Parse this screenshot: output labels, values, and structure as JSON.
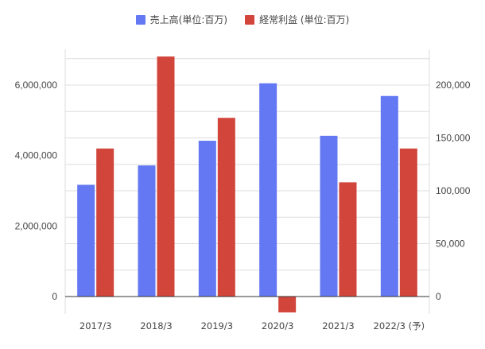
{
  "legend": {
    "sales_label": "売上高(単位:百万)",
    "profit_label": "経常利益 (単位:百万)"
  },
  "colors": {
    "sales": "#6378f2",
    "profit": "#d1453b",
    "grid": "#dddddd",
    "zero_line": "#333333"
  },
  "chart_data": {
    "type": "bar",
    "categories": [
      "2017/3",
      "2018/3",
      "2019/3",
      "2020/3",
      "2021/3",
      "2022/3 (予)"
    ],
    "series": [
      {
        "name": "売上高(単位:百万)",
        "axis": "left",
        "values": [
          3170000,
          3720000,
          4420000,
          6050000,
          4560000,
          5690000
        ]
      },
      {
        "name": "経常利益 (単位:百万)",
        "axis": "right",
        "values": [
          140000,
          227000,
          169000,
          -15000,
          108000,
          140000
        ]
      }
    ],
    "y_left": {
      "ticks": [
        0,
        2000000,
        4000000,
        6000000
      ],
      "tick_labels": [
        "0",
        "2,000,000",
        "4,000,000",
        "6,000,000"
      ],
      "ylim": [
        -500000,
        6500000
      ]
    },
    "y_right": {
      "ticks": [
        0,
        50000,
        100000,
        150000,
        200000
      ],
      "tick_labels": [
        "0",
        "50,000",
        "100,000",
        "150,000",
        "200,000"
      ],
      "ylim": [
        -16667,
        216667
      ]
    },
    "grid": true,
    "legend_position": "top-center"
  }
}
